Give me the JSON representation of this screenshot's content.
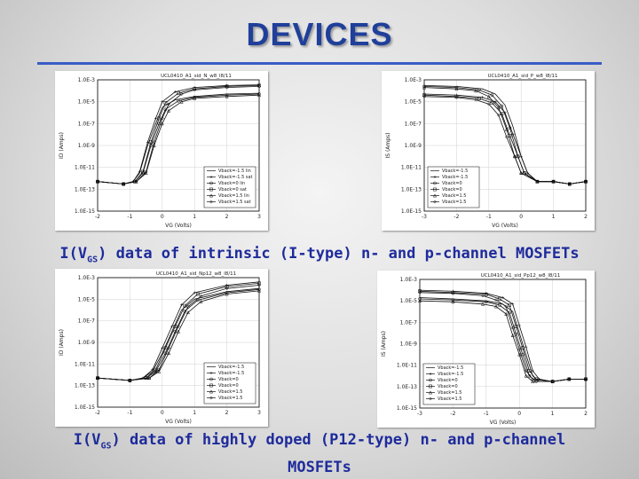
{
  "slide": {
    "title": "DEVICES",
    "caption1": {
      "prefix": "I(V",
      "sub": "GS",
      "suffix": ") data of intrinsic (I-type) n- and p-channel MOSFETs"
    },
    "caption2": {
      "prefix": "I(V",
      "sub": "GS",
      "suffix": ") data of highly doped (P12-type) n- and p-channel",
      "line2": "MOSFETs"
    }
  },
  "chart_data": [
    {
      "type": "line",
      "title": "UCL0410_A1_sid_N_w8_l8/11",
      "xlabel": "VG (Volts)",
      "ylabel": "ID (Amps)",
      "log_y": true,
      "xlim": [
        -2,
        3
      ],
      "ylim": [
        1e-15,
        0.001
      ],
      "xticks": [
        -2,
        -1,
        0,
        1,
        2,
        3
      ],
      "yticks": [
        "1.0E-3",
        "1.0E-5",
        "1.0E-7",
        "1.0E-9",
        "1.0E-11",
        "1.0E-13",
        "1.0E-15"
      ],
      "legend": "bottom-right",
      "series": [
        {
          "name": "Vback=-1.5 lin",
          "x": [
            -2,
            -1.2,
            -0.9,
            -0.7,
            -0.45,
            -0.2,
            0,
            0.4,
            1,
            2,
            3
          ],
          "y": [
            5e-13,
            3e-13,
            5e-13,
            3e-12,
            1e-09,
            1e-07,
            3e-06,
            1.5e-05,
            3e-05,
            5e-05,
            6e-05
          ]
        },
        {
          "name": "Vback=-1.5 sat",
          "x": [
            -2,
            -1.2,
            -0.9,
            -0.7,
            -0.45,
            -0.2,
            0,
            0.4,
            1,
            2,
            3
          ],
          "y": [
            5e-13,
            3e-13,
            5e-13,
            4e-12,
            2e-09,
            3e-07,
            1e-05,
            8e-05,
            0.0002,
            0.0003,
            0.00035
          ]
        },
        {
          "name": "Vback=0 lin",
          "x": [
            -2,
            -1.2,
            -0.85,
            -0.6,
            -0.35,
            -0.1,
            0.1,
            0.5,
            1,
            2,
            3
          ],
          "y": [
            5e-13,
            3e-13,
            5e-13,
            3e-12,
            1e-09,
            1e-07,
            2e-06,
            1.2e-05,
            2.5e-05,
            4e-05,
            5e-05
          ]
        },
        {
          "name": "Vback=0 sat",
          "x": [
            -2,
            -1.2,
            -0.85,
            -0.6,
            -0.35,
            -0.1,
            0.1,
            0.5,
            1,
            2,
            3
          ],
          "y": [
            5e-13,
            3e-13,
            5e-13,
            4e-12,
            2e-09,
            3e-07,
            8e-06,
            6e-05,
            0.00015,
            0.00025,
            0.0003
          ]
        },
        {
          "name": "Vback=1.5 lin",
          "x": [
            -2,
            -1.2,
            -0.8,
            -0.5,
            -0.25,
            0,
            0.2,
            0.6,
            1,
            2,
            3
          ],
          "y": [
            5e-13,
            3e-13,
            5e-13,
            3e-12,
            1e-09,
            1e-07,
            1.5e-06,
            1e-05,
            2e-05,
            3e-05,
            4e-05
          ]
        },
        {
          "name": "Vback=1.5 sat",
          "x": [
            -2,
            -1.2,
            -0.8,
            -0.5,
            -0.25,
            0,
            0.2,
            0.6,
            1,
            2,
            3
          ],
          "y": [
            5e-13,
            3e-13,
            5e-13,
            4e-12,
            2e-09,
            3e-07,
            6e-06,
            5e-05,
            0.00012,
            0.0002,
            0.00025
          ]
        }
      ]
    },
    {
      "type": "line",
      "title": "UCL0410_A1_sid_P_w8_l8/11",
      "xlabel": "VG (Volts)",
      "ylabel": "IS (Amps)",
      "log_y": true,
      "xlim": [
        -3,
        2
      ],
      "ylim": [
        1e-15,
        0.001
      ],
      "xticks": [
        -3,
        -2,
        -1,
        0,
        1,
        2
      ],
      "yticks": [
        "1.0E-3",
        "1.0E-5",
        "1.0E-7",
        "1.0E-9",
        "1.0E-11",
        "1.0E-13",
        "1.0E-15"
      ],
      "legend": "bottom-left",
      "series": [
        {
          "name": "Vback=-1.5",
          "x": [
            -3,
            -2,
            -1.2,
            -0.8,
            -0.5,
            -0.25,
            0,
            0.2,
            0.5,
            1,
            1.5,
            2
          ],
          "y": [
            0.0003,
            0.00025,
            0.00015,
            5e-05,
            5e-06,
            5e-08,
            1e-10,
            3e-12,
            5e-13,
            5e-13,
            3e-13,
            5e-13
          ]
        },
        {
          "name": "Vback=-1.5",
          "x": [
            -3,
            -2,
            -1.2,
            -0.8,
            -0.5,
            -0.25,
            0,
            0.2,
            0.5,
            1,
            1.5,
            2
          ],
          "y": [
            5e-05,
            4e-05,
            2.5e-05,
            1e-05,
            1e-06,
            1e-08,
            1e-10,
            3e-12,
            5e-13,
            5e-13,
            3e-13,
            5e-13
          ]
        },
        {
          "name": "Vback=0",
          "x": [
            -3,
            -2,
            -1.3,
            -0.9,
            -0.6,
            -0.35,
            -0.1,
            0.1,
            0.5,
            1,
            1.5,
            2
          ],
          "y": [
            0.00025,
            0.0002,
            0.00012,
            4e-05,
            4e-06,
            4e-08,
            1e-10,
            3e-12,
            5e-13,
            5e-13,
            3e-13,
            5e-13
          ]
        },
        {
          "name": "Vback=0",
          "x": [
            -3,
            -2,
            -1.3,
            -0.9,
            -0.6,
            -0.35,
            -0.1,
            0.1,
            0.5,
            1,
            1.5,
            2
          ],
          "y": [
            4e-05,
            3e-05,
            2e-05,
            8e-06,
            8e-07,
            8e-09,
            1e-10,
            3e-12,
            5e-13,
            5e-13,
            3e-13,
            5e-13
          ]
        },
        {
          "name": "Vback=1.5",
          "x": [
            -3,
            -2,
            -1.4,
            -1,
            -0.7,
            -0.45,
            -0.2,
            0,
            0.5,
            1,
            1.5,
            2
          ],
          "y": [
            0.0002,
            0.00015,
            0.0001,
            3e-05,
            3e-06,
            3e-08,
            1e-10,
            3e-12,
            5e-13,
            5e-13,
            3e-13,
            5e-13
          ]
        },
        {
          "name": "Vback=1.5",
          "x": [
            -3,
            -2,
            -1.4,
            -1,
            -0.7,
            -0.45,
            -0.2,
            0,
            0.5,
            1,
            1.5,
            2
          ],
          "y": [
            3e-05,
            2.5e-05,
            1.5e-05,
            6e-06,
            6e-07,
            6e-09,
            1e-10,
            3e-12,
            5e-13,
            5e-13,
            3e-13,
            5e-13
          ]
        }
      ]
    },
    {
      "type": "line",
      "title": "UCL0410_A1_sid_Np12_w8_l8/11",
      "xlabel": "VG (Volts)",
      "ylabel": "ID (Amps)",
      "log_y": true,
      "xlim": [
        -2,
        3
      ],
      "ylim": [
        1e-15,
        0.001
      ],
      "xticks": [
        -2,
        -1,
        0,
        1,
        2,
        3
      ],
      "yticks": [
        "1.0E-3",
        "1.0E-5",
        "1.0E-7",
        "1.0E-9",
        "1.0E-11",
        "1.0E-13",
        "1.0E-15"
      ],
      "legend": "bottom-right",
      "series": [
        {
          "name": "Vback=-1.5",
          "x": [
            -2,
            -1,
            -0.6,
            -0.3,
            0,
            0.3,
            0.6,
            1,
            2,
            3
          ],
          "y": [
            5e-13,
            3e-13,
            5e-13,
            2e-12,
            1e-10,
            1e-08,
            1e-06,
            1e-05,
            5e-05,
            0.0001
          ]
        },
        {
          "name": "Vback=-1.5",
          "x": [
            -2,
            -1,
            -0.6,
            -0.3,
            0,
            0.3,
            0.6,
            1,
            2,
            3
          ],
          "y": [
            5e-13,
            3e-13,
            5e-13,
            3e-12,
            3e-10,
            3e-08,
            3e-06,
            4e-05,
            0.0002,
            0.0004
          ]
        },
        {
          "name": "Vback=0",
          "x": [
            -2,
            -1,
            -0.5,
            -0.2,
            0.1,
            0.4,
            0.7,
            1.1,
            2,
            3
          ],
          "y": [
            5e-13,
            3e-13,
            5e-13,
            2e-12,
            1e-10,
            1e-08,
            8e-07,
            8e-06,
            4e-05,
            8e-05
          ]
        },
        {
          "name": "Vback=0",
          "x": [
            -2,
            -1,
            -0.5,
            -0.2,
            0.1,
            0.4,
            0.7,
            1.1,
            2,
            3
          ],
          "y": [
            5e-13,
            3e-13,
            5e-13,
            3e-12,
            3e-10,
            3e-08,
            2.5e-06,
            3e-05,
            0.00015,
            0.0003
          ]
        },
        {
          "name": "Vback=1.5",
          "x": [
            -2,
            -1,
            -0.4,
            -0.1,
            0.2,
            0.5,
            0.8,
            1.2,
            2,
            3
          ],
          "y": [
            5e-13,
            3e-13,
            5e-13,
            2e-12,
            1e-10,
            1e-08,
            6e-07,
            6e-06,
            3e-05,
            6e-05
          ]
        },
        {
          "name": "Vback=1.5",
          "x": [
            -2,
            -1,
            -0.4,
            -0.1,
            0.2,
            0.5,
            0.8,
            1.2,
            2,
            3
          ],
          "y": [
            5e-13,
            3e-13,
            5e-13,
            3e-12,
            3e-10,
            3e-08,
            2e-06,
            2e-05,
            0.0001,
            0.0002
          ]
        }
      ]
    },
    {
      "type": "line",
      "title": "UCL0410_A1_sid_Pp12_w8_l8/11",
      "xlabel": "VG (Volts)",
      "ylabel": "IS (Amps)",
      "log_y": true,
      "xlim": [
        -3,
        2
      ],
      "ylim": [
        1e-15,
        0.001
      ],
      "xticks": [
        -3,
        -2,
        -1,
        0,
        1,
        2
      ],
      "yticks": [
        "1.0E-3",
        "1.0E-5",
        "1.0E-7",
        "1.0E-9",
        "1.0E-11",
        "1.0E-13",
        "1.0E-15"
      ],
      "legend": "bottom-left",
      "series": [
        {
          "name": "Vback=-1.5",
          "x": [
            -3,
            -2,
            -1,
            -0.5,
            -0.2,
            0,
            0.2,
            0.4,
            0.6,
            1,
            1.5,
            2
          ],
          "y": [
            2e-05,
            1.5e-05,
            1e-05,
            5e-06,
            1e-06,
            1e-08,
            1e-10,
            1e-12,
            3e-13,
            3e-13,
            5e-13,
            5e-13
          ]
        },
        {
          "name": "Vback=-1.5",
          "x": [
            -3,
            -2,
            -1,
            -0.5,
            -0.2,
            0,
            0.2,
            0.4,
            0.6,
            1,
            1.5,
            2
          ],
          "y": [
            0.0001,
            8e-05,
            5e-05,
            2e-05,
            5e-06,
            5e-08,
            5e-10,
            3e-12,
            5e-13,
            3e-13,
            5e-13,
            5e-13
          ]
        },
        {
          "name": "Vback=0",
          "x": [
            -3,
            -2,
            -1,
            -0.6,
            -0.3,
            -0.1,
            0.1,
            0.3,
            0.5,
            1,
            1.5,
            2
          ],
          "y": [
            1.5e-05,
            1.2e-05,
            8e-06,
            4e-06,
            8e-07,
            8e-09,
            1e-10,
            1e-12,
            3e-13,
            3e-13,
            5e-13,
            5e-13
          ]
        },
        {
          "name": "Vback=0",
          "x": [
            -3,
            -2,
            -1,
            -0.6,
            -0.3,
            -0.1,
            0.1,
            0.3,
            0.5,
            1,
            1.5,
            2
          ],
          "y": [
            8e-05,
            6e-05,
            4e-05,
            1.5e-05,
            4e-06,
            4e-08,
            4e-10,
            3e-12,
            5e-13,
            3e-13,
            5e-13,
            5e-13
          ]
        },
        {
          "name": "Vback=1.5",
          "x": [
            -3,
            -2,
            -1.1,
            -0.7,
            -0.4,
            -0.2,
            0,
            0.2,
            0.4,
            1,
            1.5,
            2
          ],
          "y": [
            1e-05,
            8e-06,
            5e-06,
            3e-06,
            6e-07,
            6e-09,
            1e-10,
            1e-12,
            3e-13,
            3e-13,
            5e-13,
            5e-13
          ]
        },
        {
          "name": "Vback=1.5",
          "x": [
            -3,
            -2,
            -1.1,
            -0.7,
            -0.4,
            -0.2,
            0,
            0.2,
            0.4,
            1,
            1.5,
            2
          ],
          "y": [
            6e-05,
            5e-05,
            3e-05,
            1.2e-05,
            3e-06,
            3e-08,
            3e-10,
            3e-12,
            5e-13,
            3e-13,
            5e-13,
            5e-13
          ]
        }
      ]
    }
  ]
}
